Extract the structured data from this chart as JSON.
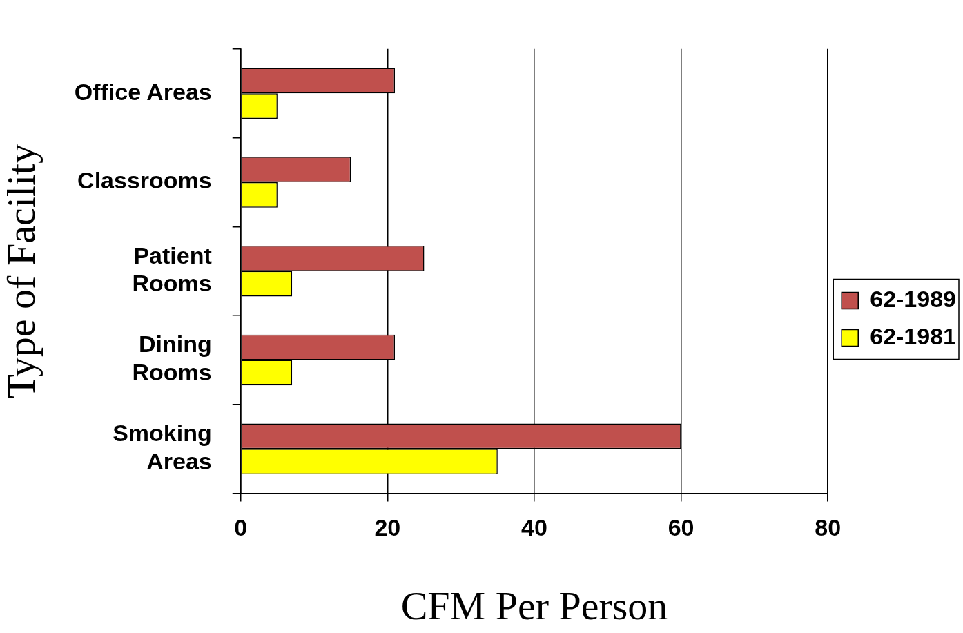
{
  "chart_data": {
    "type": "bar",
    "orientation": "horizontal",
    "xlabel": "CFM Per Person",
    "ylabel": "Type of Facility",
    "categories": [
      "Office Areas",
      "Classrooms",
      "Patient Rooms",
      "Dining Rooms",
      "Smoking Areas"
    ],
    "series": [
      {
        "name": "62-1989",
        "color": "#c0504d",
        "values": [
          21,
          15,
          25,
          21,
          60
        ]
      },
      {
        "name": "62-1981",
        "color": "#ffff00",
        "values": [
          5,
          5,
          7,
          7,
          35
        ]
      }
    ],
    "xlim": [
      0,
      80
    ],
    "xticks": [
      0,
      20,
      40,
      60,
      80
    ],
    "grid": "x",
    "legend": "right"
  }
}
